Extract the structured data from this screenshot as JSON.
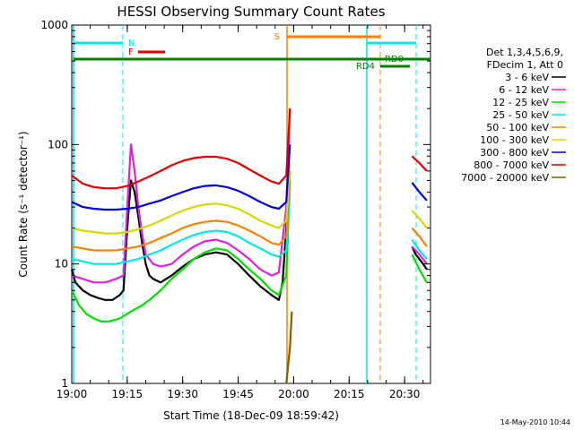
{
  "chart_data": {
    "type": "line",
    "title": "HESSI Observing Summary Count Rates",
    "xlabel": "Start Time (18-Dec-09 18:59:42)",
    "ylabel": "Count Rate (s⁻¹ detector⁻¹)",
    "yscale": "log",
    "ylim": [
      1,
      1000
    ],
    "xlim": [
      "19:00",
      "20:37"
    ],
    "x_ticks": [
      "19:00",
      "19:15",
      "19:30",
      "19:45",
      "20:00",
      "20:15",
      "20:30"
    ],
    "y_ticks": [
      "1",
      "10",
      "100",
      "1000"
    ],
    "legend_title": [
      "Det 1,3,4,5,6,9,",
      "FDecim 1, Att 0"
    ],
    "legend_position": "right",
    "series": [
      {
        "name": "3 - 6 keV",
        "color": "#000000",
        "x": [
          "19:00",
          "19:01",
          "19:03",
          "19:05",
          "19:07",
          "19:09",
          "19:11",
          "19:13",
          "19:14",
          "19:15",
          "19:16",
          "19:17",
          "19:18",
          "19:19",
          "19:20",
          "19:21",
          "19:22",
          "19:24",
          "19:27",
          "19:30",
          "19:33",
          "19:36",
          "19:39",
          "19:42",
          "19:45",
          "19:48",
          "19:51",
          "19:54",
          "19:56",
          "19:57",
          "19:58",
          "19:59",
          "20:32",
          "20:33",
          "20:34",
          "20:35",
          "20:36"
        ],
        "y": [
          9,
          7,
          6,
          5.5,
          5.2,
          5,
          5,
          5.5,
          6,
          20,
          50,
          40,
          25,
          15,
          10,
          8,
          7.5,
          7,
          8,
          9.5,
          11,
          12,
          12.5,
          12,
          10,
          8,
          6.5,
          5.5,
          5,
          7,
          20,
          60,
          14,
          12,
          11,
          10,
          9
        ]
      },
      {
        "name": "6 - 12 keV",
        "color": "#e020e0",
        "x": [
          "19:00",
          "19:03",
          "19:06",
          "19:09",
          "19:12",
          "19:14",
          "19:15",
          "19:16",
          "19:17",
          "19:18",
          "19:19",
          "19:20",
          "19:22",
          "19:24",
          "19:27",
          "19:30",
          "19:33",
          "19:36",
          "19:39",
          "19:42",
          "19:45",
          "19:48",
          "19:51",
          "19:54",
          "19:56",
          "19:58",
          "19:59",
          "20:32",
          "20:34",
          "20:36"
        ],
        "y": [
          8,
          7.5,
          7,
          7,
          7.5,
          8,
          30,
          100,
          60,
          30,
          18,
          12,
          10,
          9.5,
          10,
          12,
          14,
          15.5,
          16,
          15,
          13,
          11,
          9,
          8,
          8.5,
          30,
          200,
          14,
          12,
          10
        ]
      },
      {
        "name": "12 - 25 keV",
        "color": "#00e000",
        "x": [
          "19:00",
          "19:02",
          "19:04",
          "19:06",
          "19:08",
          "19:10",
          "19:13",
          "19:16",
          "19:19",
          "19:21",
          "19:24",
          "19:27",
          "19:30",
          "19:33",
          "19:36",
          "19:39",
          "19:42",
          "19:45",
          "19:48",
          "19:51",
          "19:54",
          "19:56",
          "19:58",
          "19:59",
          "20:32",
          "20:34",
          "20:36"
        ],
        "y": [
          6,
          4.5,
          3.8,
          3.5,
          3.3,
          3.3,
          3.5,
          4,
          4.5,
          5,
          6,
          7.5,
          9,
          11,
          12.5,
          13.5,
          13,
          11,
          9,
          7.5,
          6,
          5.5,
          8,
          50,
          12,
          9,
          7
        ]
      },
      {
        "name": "25 - 50 keV",
        "color": "#00e8e8",
        "x": [
          "19:00",
          "19:03",
          "19:06",
          "19:09",
          "19:12",
          "19:15",
          "19:18",
          "19:21",
          "19:24",
          "19:27",
          "19:30",
          "19:33",
          "19:36",
          "19:39",
          "19:42",
          "19:45",
          "19:48",
          "19:51",
          "19:54",
          "19:56",
          "19:58",
          "19:59",
          "20:32",
          "20:34",
          "20:36"
        ],
        "y": [
          11,
          10.5,
          10,
          10,
          10,
          10.5,
          11,
          12,
          13,
          14.5,
          16,
          17.5,
          18.5,
          19,
          18.5,
          17,
          15,
          13.5,
          12,
          11.5,
          13,
          40,
          16,
          13,
          11
        ]
      },
      {
        "name": "50 - 100 keV",
        "color": "#ff8000",
        "x": [
          "19:00",
          "19:03",
          "19:06",
          "19:09",
          "19:12",
          "19:15",
          "19:18",
          "19:21",
          "19:24",
          "19:27",
          "19:30",
          "19:33",
          "19:36",
          "19:39",
          "19:42",
          "19:45",
          "19:48",
          "19:51",
          "19:54",
          "19:56",
          "19:58",
          "19:59",
          "20:32",
          "20:34",
          "20:36"
        ],
        "y": [
          14,
          13.5,
          13,
          13,
          13,
          13.5,
          14,
          15,
          16.5,
          18,
          20,
          21.5,
          22.5,
          23,
          22.5,
          21,
          19,
          17,
          15,
          14.5,
          17,
          60,
          20,
          17,
          14
        ]
      },
      {
        "name": "100 - 300 keV",
        "color": "#d8d800",
        "x": [
          "19:00",
          "19:03",
          "19:06",
          "19:09",
          "19:12",
          "19:15",
          "19:18",
          "19:21",
          "19:24",
          "19:27",
          "19:30",
          "19:33",
          "19:36",
          "19:39",
          "19:42",
          "19:45",
          "19:48",
          "19:51",
          "19:54",
          "19:56",
          "19:58",
          "19:59",
          "20:32",
          "20:34",
          "20:36"
        ],
        "y": [
          20,
          19,
          18.5,
          18,
          18,
          18.5,
          19.5,
          21,
          23,
          25.5,
          28,
          30,
          31.5,
          32,
          31,
          29,
          26,
          23,
          21,
          20,
          23,
          70,
          28,
          24,
          20
        ]
      },
      {
        "name": "300 - 800 keV",
        "color": "#0000e0",
        "x": [
          "19:00",
          "19:03",
          "19:06",
          "19:09",
          "19:12",
          "19:15",
          "19:18",
          "19:21",
          "19:24",
          "19:27",
          "19:30",
          "19:33",
          "19:36",
          "19:39",
          "19:42",
          "19:45",
          "19:48",
          "19:51",
          "19:54",
          "19:56",
          "19:58",
          "19:59",
          "20:32",
          "20:34",
          "20:36"
        ],
        "y": [
          33,
          30,
          29,
          28.5,
          28.5,
          29,
          30,
          32,
          34,
          37,
          40,
          43,
          45,
          45.5,
          44,
          41,
          37,
          33,
          30,
          29,
          33,
          100,
          48,
          40,
          34
        ]
      },
      {
        "name": "800 - 7000 keV",
        "color": "#e00000",
        "x": [
          "19:00",
          "19:03",
          "19:06",
          "19:09",
          "19:12",
          "19:15",
          "19:18",
          "19:21",
          "19:24",
          "19:27",
          "19:30",
          "19:33",
          "19:36",
          "19:39",
          "19:42",
          "19:45",
          "19:48",
          "19:51",
          "19:54",
          "19:56",
          "19:58",
          "19:59",
          "20:32",
          "20:34",
          "20:36"
        ],
        "y": [
          55,
          47,
          44,
          43,
          43,
          45,
          49,
          54,
          60,
          67,
          73,
          77,
          79,
          79,
          76,
          70,
          62,
          55,
          49,
          47,
          55,
          200,
          80,
          70,
          60
        ]
      },
      {
        "name": "7000 - 20000 keV",
        "color": "#806000",
        "x": [
          "19:58",
          "19:59",
          "19:59.5"
        ],
        "y": [
          1,
          2,
          4
        ]
      }
    ],
    "flag_bars": [
      {
        "label": "N",
        "color": "#00e8e8"
      },
      {
        "label": "F",
        "color": "#e00000"
      },
      {
        "label": "S",
        "color": "#ff8000"
      },
      {
        "label": "RD0",
        "color": "#008000"
      },
      {
        "label": "RD4",
        "color": "#008000"
      }
    ],
    "saa_lines": {
      "solid_color": "#00e8e8",
      "dashed_color": "#00e8e8"
    },
    "attenuator_lines": {
      "color": "#ff8000"
    }
  },
  "footer": {
    "timestamp": "14-May-2010 10:44"
  }
}
